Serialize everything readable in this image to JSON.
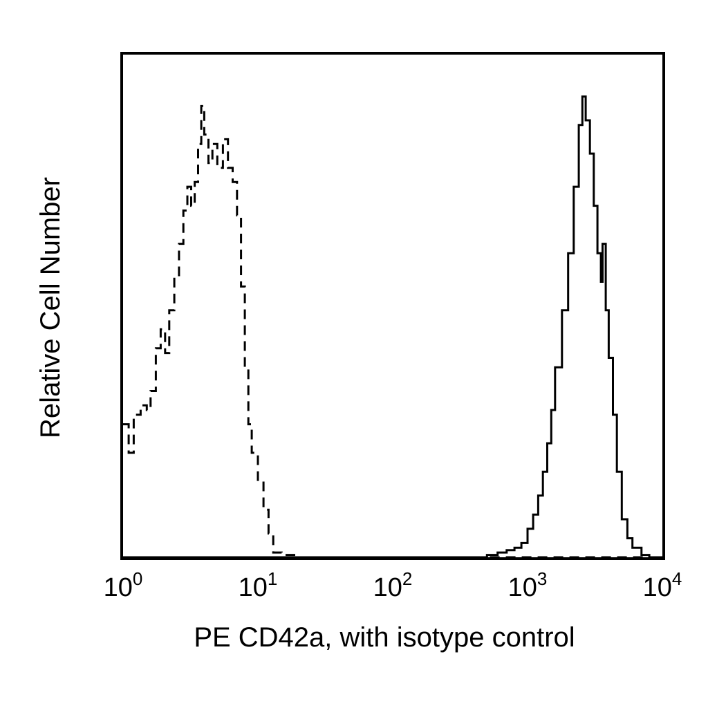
{
  "chart_data": {
    "type": "histogram",
    "title": "",
    "xlabel": "PE CD42a, with isotype control",
    "ylabel": "Relative Cell Number",
    "x_scale": "log",
    "xlim": [
      1,
      10000
    ],
    "ylim": [
      0,
      1
    ],
    "grid": false,
    "legend": "none",
    "x_ticks": [
      {
        "value": 1,
        "base": "10",
        "exp": "0"
      },
      {
        "value": 10,
        "base": "10",
        "exp": "1"
      },
      {
        "value": 100,
        "base": "10",
        "exp": "2"
      },
      {
        "value": 1000,
        "base": "10",
        "exp": "3"
      },
      {
        "value": 10000,
        "base": "10",
        "exp": "4"
      }
    ],
    "series": [
      {
        "style": "dashed",
        "color": "#000000",
        "points": [
          [
            1.0,
            0.28
          ],
          [
            1.1,
            0.22
          ],
          [
            1.2,
            0.3
          ],
          [
            1.35,
            0.32
          ],
          [
            1.5,
            0.31
          ],
          [
            1.6,
            0.35
          ],
          [
            1.75,
            0.44
          ],
          [
            1.9,
            0.48
          ],
          [
            2.05,
            0.43
          ],
          [
            2.2,
            0.52
          ],
          [
            2.4,
            0.59
          ],
          [
            2.6,
            0.66
          ],
          [
            2.8,
            0.73
          ],
          [
            3.0,
            0.78
          ],
          [
            3.2,
            0.74
          ],
          [
            3.4,
            0.79
          ],
          [
            3.6,
            0.87
          ],
          [
            3.8,
            0.95
          ],
          [
            4.0,
            0.89
          ],
          [
            4.3,
            0.83
          ],
          [
            4.6,
            0.87
          ],
          [
            5.0,
            0.82
          ],
          [
            5.5,
            0.88
          ],
          [
            6.0,
            0.82
          ],
          [
            6.5,
            0.79
          ],
          [
            7.0,
            0.72
          ],
          [
            7.5,
            0.57
          ],
          [
            8.0,
            0.4
          ],
          [
            8.5,
            0.28
          ],
          [
            9.0,
            0.22
          ],
          [
            10.0,
            0.16
          ],
          [
            11.0,
            0.1
          ],
          [
            12.0,
            0.05
          ],
          [
            13.0,
            0.01
          ],
          [
            15.0,
            0.005
          ],
          [
            20.0,
            0.0
          ],
          [
            10000,
            0.0
          ]
        ]
      },
      {
        "style": "solid",
        "color": "#000000",
        "points": [
          [
            1,
            0.0
          ],
          [
            400,
            0.0
          ],
          [
            500,
            0.005
          ],
          [
            600,
            0.01
          ],
          [
            700,
            0.015
          ],
          [
            800,
            0.02
          ],
          [
            900,
            0.03
          ],
          [
            1000,
            0.06
          ],
          [
            1100,
            0.09
          ],
          [
            1200,
            0.13
          ],
          [
            1300,
            0.18
          ],
          [
            1400,
            0.24
          ],
          [
            1500,
            0.31
          ],
          [
            1600,
            0.4
          ],
          [
            1800,
            0.52
          ],
          [
            2000,
            0.64
          ],
          [
            2200,
            0.78
          ],
          [
            2400,
            0.91
          ],
          [
            2550,
            0.97
          ],
          [
            2700,
            0.92
          ],
          [
            2900,
            0.85
          ],
          [
            3100,
            0.74
          ],
          [
            3300,
            0.64
          ],
          [
            3500,
            0.58
          ],
          [
            3600,
            0.66
          ],
          [
            3800,
            0.52
          ],
          [
            4000,
            0.42
          ],
          [
            4300,
            0.3
          ],
          [
            4600,
            0.18
          ],
          [
            5000,
            0.08
          ],
          [
            5500,
            0.04
          ],
          [
            6000,
            0.02
          ],
          [
            7000,
            0.005
          ],
          [
            8000,
            0.0
          ],
          [
            10000,
            0.0
          ]
        ]
      }
    ]
  }
}
